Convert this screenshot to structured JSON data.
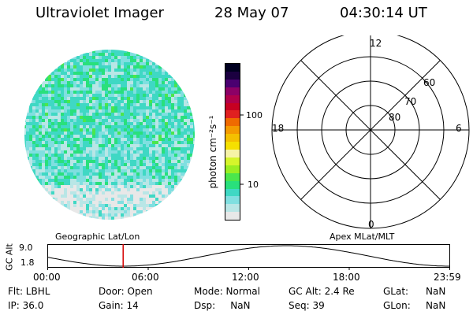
{
  "header": {
    "title": "Ultraviolet Imager",
    "date": "28 May 07",
    "time": "04:30:14 UT"
  },
  "colorbar": {
    "units": "photon cm⁻²s⁻¹",
    "ticks": [
      "100",
      "10"
    ],
    "colors": [
      "#e8e8e8",
      "#b9e6e6",
      "#80dfe0",
      "#3fd8c4",
      "#29e07c",
      "#4be64c",
      "#9aee22",
      "#d6f52b",
      "#f6f3a6",
      "#f5e000",
      "#f4c000",
      "#f49b00",
      "#ef6a00",
      "#e02020",
      "#c70022",
      "#b0004a",
      "#8c0066",
      "#4a0070",
      "#1b0040",
      "#000020"
    ]
  },
  "polar": {
    "labels": [
      "12",
      "60",
      "70",
      "80",
      "18",
      "6",
      "0"
    ]
  },
  "timeline": {
    "left_title": "Geographic Lat/Lon",
    "right_title": "Apex MLat/MLT",
    "axis_label": "GC Alt",
    "y_ticks": [
      "9.0",
      "1.8"
    ],
    "x_ticks": [
      "00:00",
      "06:00",
      "12:00",
      "18:00",
      "23:59"
    ],
    "marker_hour": 4.504,
    "colors": {
      "curve": "#000000",
      "marker": "#d40000"
    }
  },
  "status": {
    "flt": "Flt: LBHL",
    "ip": "IP: 36.0",
    "door": "Door: Open",
    "gain": "Gain: 14",
    "mode": "Mode: Normal",
    "dsp": "Dsp:     NaN",
    "gcalt": "GC Alt: 2.4 Re",
    "seq": "Seq: 39",
    "glat_label": "GLat:",
    "glat_val": "NaN",
    "glon_label": "GLon:",
    "glon_val": "NaN"
  }
}
